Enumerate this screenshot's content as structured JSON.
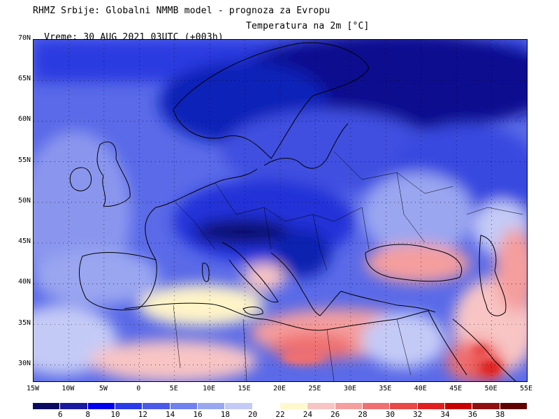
{
  "header": {
    "line1": "RHMZ Srbije: Globalni NMMB model - prognoza za Evropu",
    "line2_left": "Vreme: 30 AUG 2021 03UTC (+003h)",
    "line2_right": "Temperatura na 2m [°C]"
  },
  "map": {
    "lat_labels": [
      "70N",
      "65N",
      "60N",
      "55N",
      "50N",
      "45N",
      "40N",
      "35N",
      "30N"
    ],
    "lon_labels": [
      "15W",
      "10W",
      "5W",
      "0",
      "5E",
      "10E",
      "15E",
      "20E",
      "25E",
      "30E",
      "35E",
      "40E",
      "45E",
      "50E",
      "55E"
    ],
    "lat_range": [
      28,
      70
    ],
    "lon_range": [
      -15,
      55
    ],
    "grid": true
  },
  "legend": {
    "labels": [
      "6",
      "8",
      "10",
      "12",
      "14",
      "16",
      "18",
      "20",
      "22",
      "24",
      "26",
      "28",
      "30",
      "32",
      "34",
      "36",
      "38"
    ],
    "colors": [
      "#0a0a60",
      "#1a1aa0",
      "#0000ee",
      "#2a3ae8",
      "#4a5ae8",
      "#7080ec",
      "#9aa6f0",
      "#c4caf6",
      "#ffffff",
      "#fff8cc",
      "#f8c4c4",
      "#f49e9e",
      "#f07070",
      "#e84848",
      "#e02020",
      "#c80000",
      "#901010",
      "#600000"
    ]
  }
}
